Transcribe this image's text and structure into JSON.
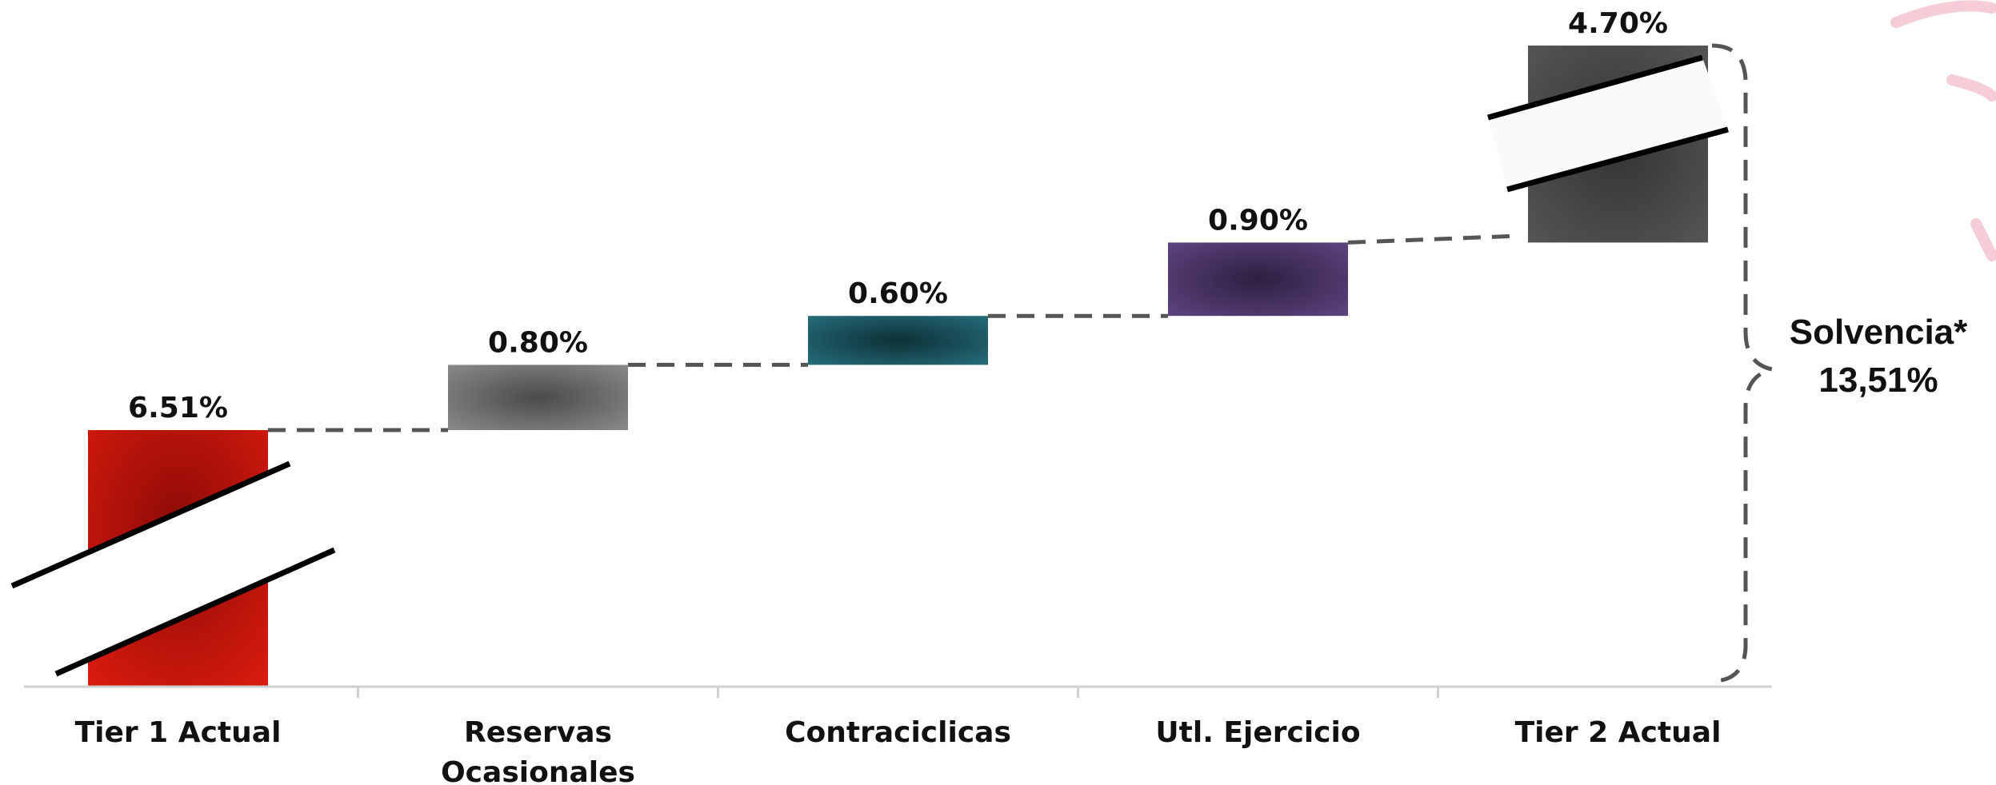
{
  "chart_data": {
    "type": "bar",
    "subtype": "waterfall",
    "categories": [
      "Tier 1 Actual",
      "Reservas Ocasionales",
      "Contraciclicas",
      "Utl. Ejercicio",
      "Tier 2 Actual"
    ],
    "category_label_lines": [
      [
        "Tier 1 Actual"
      ],
      [
        "Reservas",
        "Ocasionales"
      ],
      [
        "Contraciclicas"
      ],
      [
        "Utl. Ejercicio"
      ],
      [
        "Tier 2 Actual"
      ]
    ],
    "values": [
      6.51,
      0.8,
      0.6,
      0.9,
      4.7
    ],
    "value_labels": [
      "6.51%",
      "0.80%",
      "0.60%",
      "0.90%",
      "4.70%"
    ],
    "bar_colors": [
      "#c8150c",
      "#7a7a7a",
      "#1c5f6b",
      "#5a3f78",
      "#4a4a4a"
    ],
    "axis_break": true,
    "grid": false,
    "total_annotation": {
      "line1": "Solvencia*",
      "line2": "13,51%"
    }
  }
}
